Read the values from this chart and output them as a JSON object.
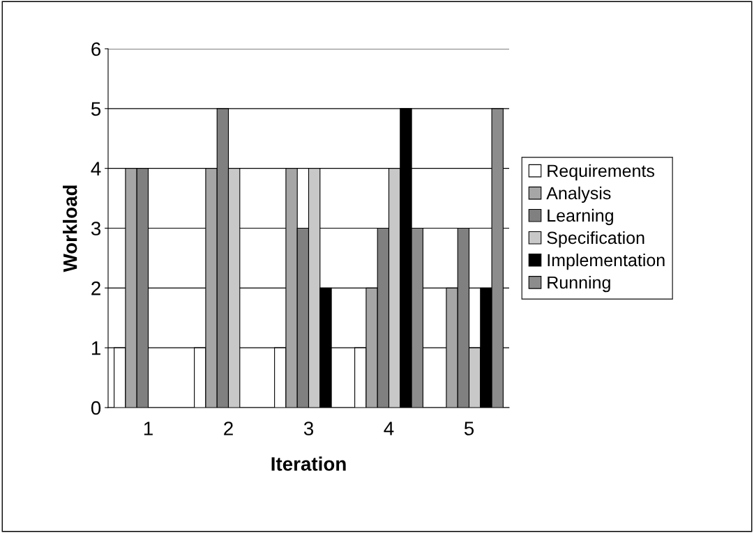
{
  "chart_data": {
    "type": "bar",
    "xlabel": "Iteration",
    "ylabel": "Workload",
    "categories": [
      "1",
      "2",
      "3",
      "4",
      "5"
    ],
    "series": [
      {
        "name": "Requirements",
        "color": "#ffffff",
        "values": [
          1,
          1,
          1,
          1,
          null
        ]
      },
      {
        "name": "Analysis",
        "color": "#a6a6a6",
        "values": [
          4,
          4,
          4,
          2,
          2
        ]
      },
      {
        "name": "Learning",
        "color": "#808080",
        "values": [
          4,
          5,
          3,
          3,
          3
        ]
      },
      {
        "name": "Specification",
        "color": "#c8c8c8",
        "values": [
          null,
          4,
          4,
          4,
          1
        ]
      },
      {
        "name": "Implementation",
        "color": "#000000",
        "values": [
          null,
          null,
          2,
          5,
          2
        ]
      },
      {
        "name": "Running",
        "color": "#8c8c8c",
        "values": [
          null,
          null,
          null,
          3,
          5
        ]
      }
    ],
    "ylim": [
      0,
      6
    ],
    "yticks": [
      0,
      1,
      2,
      3,
      4,
      5,
      6
    ],
    "grid": "y",
    "legend": "right"
  }
}
